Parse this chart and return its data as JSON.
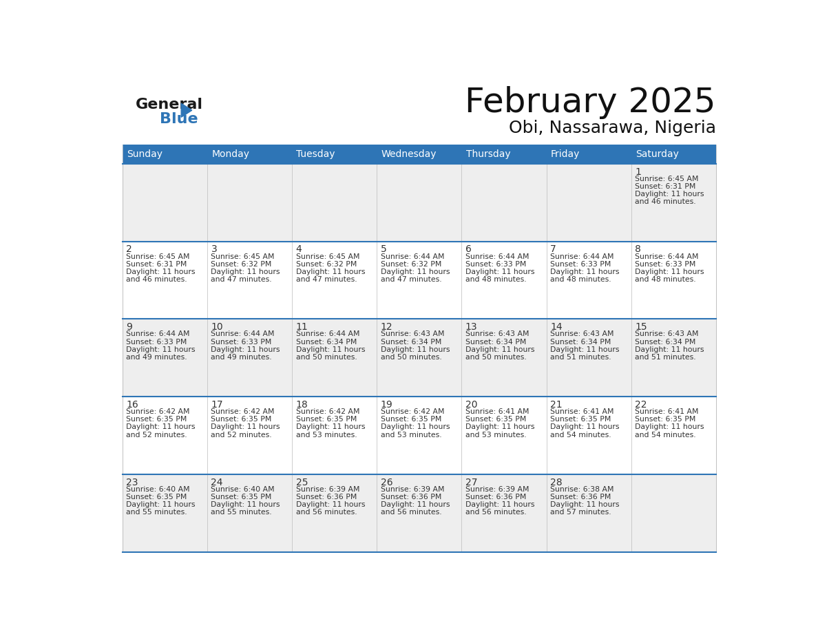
{
  "title": "February 2025",
  "subtitle": "Obi, Nassarawa, Nigeria",
  "header_bg": "#2E75B6",
  "header_text_color": "#FFFFFF",
  "cell_bg_light": "#EEEEEE",
  "cell_bg_white": "#FFFFFF",
  "day_number_color": "#333333",
  "info_text_color": "#333333",
  "grid_line_color": "#2E75B6",
  "days_of_week": [
    "Sunday",
    "Monday",
    "Tuesday",
    "Wednesday",
    "Thursday",
    "Friday",
    "Saturday"
  ],
  "calendar_data": [
    [
      null,
      null,
      null,
      null,
      null,
      null,
      {
        "day": 1,
        "sunrise": "6:45 AM",
        "sunset": "6:31 PM",
        "daylight": "11 hours and 46 minutes."
      }
    ],
    [
      {
        "day": 2,
        "sunrise": "6:45 AM",
        "sunset": "6:31 PM",
        "daylight": "11 hours and 46 minutes."
      },
      {
        "day": 3,
        "sunrise": "6:45 AM",
        "sunset": "6:32 PM",
        "daylight": "11 hours and 47 minutes."
      },
      {
        "day": 4,
        "sunrise": "6:45 AM",
        "sunset": "6:32 PM",
        "daylight": "11 hours and 47 minutes."
      },
      {
        "day": 5,
        "sunrise": "6:44 AM",
        "sunset": "6:32 PM",
        "daylight": "11 hours and 47 minutes."
      },
      {
        "day": 6,
        "sunrise": "6:44 AM",
        "sunset": "6:33 PM",
        "daylight": "11 hours and 48 minutes."
      },
      {
        "day": 7,
        "sunrise": "6:44 AM",
        "sunset": "6:33 PM",
        "daylight": "11 hours and 48 minutes."
      },
      {
        "day": 8,
        "sunrise": "6:44 AM",
        "sunset": "6:33 PM",
        "daylight": "11 hours and 48 minutes."
      }
    ],
    [
      {
        "day": 9,
        "sunrise": "6:44 AM",
        "sunset": "6:33 PM",
        "daylight": "11 hours and 49 minutes."
      },
      {
        "day": 10,
        "sunrise": "6:44 AM",
        "sunset": "6:33 PM",
        "daylight": "11 hours and 49 minutes."
      },
      {
        "day": 11,
        "sunrise": "6:44 AM",
        "sunset": "6:34 PM",
        "daylight": "11 hours and 50 minutes."
      },
      {
        "day": 12,
        "sunrise": "6:43 AM",
        "sunset": "6:34 PM",
        "daylight": "11 hours and 50 minutes."
      },
      {
        "day": 13,
        "sunrise": "6:43 AM",
        "sunset": "6:34 PM",
        "daylight": "11 hours and 50 minutes."
      },
      {
        "day": 14,
        "sunrise": "6:43 AM",
        "sunset": "6:34 PM",
        "daylight": "11 hours and 51 minutes."
      },
      {
        "day": 15,
        "sunrise": "6:43 AM",
        "sunset": "6:34 PM",
        "daylight": "11 hours and 51 minutes."
      }
    ],
    [
      {
        "day": 16,
        "sunrise": "6:42 AM",
        "sunset": "6:35 PM",
        "daylight": "11 hours and 52 minutes."
      },
      {
        "day": 17,
        "sunrise": "6:42 AM",
        "sunset": "6:35 PM",
        "daylight": "11 hours and 52 minutes."
      },
      {
        "day": 18,
        "sunrise": "6:42 AM",
        "sunset": "6:35 PM",
        "daylight": "11 hours and 53 minutes."
      },
      {
        "day": 19,
        "sunrise": "6:42 AM",
        "sunset": "6:35 PM",
        "daylight": "11 hours and 53 minutes."
      },
      {
        "day": 20,
        "sunrise": "6:41 AM",
        "sunset": "6:35 PM",
        "daylight": "11 hours and 53 minutes."
      },
      {
        "day": 21,
        "sunrise": "6:41 AM",
        "sunset": "6:35 PM",
        "daylight": "11 hours and 54 minutes."
      },
      {
        "day": 22,
        "sunrise": "6:41 AM",
        "sunset": "6:35 PM",
        "daylight": "11 hours and 54 minutes."
      }
    ],
    [
      {
        "day": 23,
        "sunrise": "6:40 AM",
        "sunset": "6:35 PM",
        "daylight": "11 hours and 55 minutes."
      },
      {
        "day": 24,
        "sunrise": "6:40 AM",
        "sunset": "6:35 PM",
        "daylight": "11 hours and 55 minutes."
      },
      {
        "day": 25,
        "sunrise": "6:39 AM",
        "sunset": "6:36 PM",
        "daylight": "11 hours and 56 minutes."
      },
      {
        "day": 26,
        "sunrise": "6:39 AM",
        "sunset": "6:36 PM",
        "daylight": "11 hours and 56 minutes."
      },
      {
        "day": 27,
        "sunrise": "6:39 AM",
        "sunset": "6:36 PM",
        "daylight": "11 hours and 56 minutes."
      },
      {
        "day": 28,
        "sunrise": "6:38 AM",
        "sunset": "6:36 PM",
        "daylight": "11 hours and 57 minutes."
      },
      null
    ]
  ]
}
